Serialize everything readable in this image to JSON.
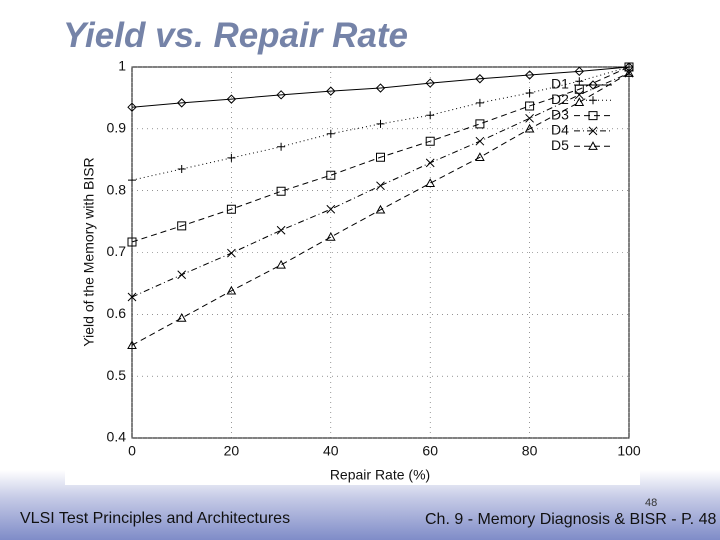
{
  "slide": {
    "title": "Yield vs. Repair Rate",
    "footer_left": "VLSI Test Principles and Architectures",
    "footer_right": "Ch. 9 - Memory Diagnosis & BISR - P. 48",
    "page_number": "48"
  },
  "chart_data": {
    "type": "line",
    "xlabel": "Repair Rate (%)",
    "ylabel": "Yield of the Memory with BISR",
    "x": [
      0,
      10,
      20,
      30,
      40,
      50,
      60,
      70,
      80,
      90,
      100
    ],
    "series": [
      {
        "name": "D1",
        "color": "#000000",
        "marker": "diamond",
        "dash": "solid",
        "values": [
          0.935,
          0.942,
          0.948,
          0.955,
          0.961,
          0.966,
          0.974,
          0.981,
          0.987,
          0.993,
          1.0
        ]
      },
      {
        "name": "D2",
        "color": "#000000",
        "marker": "plus",
        "dash": "dotted",
        "values": [
          0.817,
          0.835,
          0.853,
          0.871,
          0.892,
          0.908,
          0.922,
          0.942,
          0.958,
          0.977,
          1.0
        ]
      },
      {
        "name": "D3",
        "color": "#000000",
        "marker": "square",
        "dash": "dashed",
        "values": [
          0.717,
          0.743,
          0.77,
          0.799,
          0.825,
          0.854,
          0.88,
          0.908,
          0.937,
          0.964,
          1.0
        ]
      },
      {
        "name": "D4",
        "color": "#000000",
        "marker": "cross",
        "dash": "dashdot",
        "values": [
          0.628,
          0.664,
          0.699,
          0.736,
          0.77,
          0.808,
          0.845,
          0.88,
          0.917,
          0.955,
          0.99
        ]
      },
      {
        "name": "D5",
        "color": "#000000",
        "marker": "triangle",
        "dash": "dashed",
        "values": [
          0.55,
          0.594,
          0.638,
          0.68,
          0.725,
          0.769,
          0.812,
          0.854,
          0.9,
          0.943,
          0.99
        ]
      }
    ],
    "xlim": [
      0,
      100
    ],
    "ylim": [
      0.4,
      1
    ],
    "xticks": [
      0,
      20,
      40,
      60,
      80,
      100
    ],
    "yticks": [
      0.4,
      0.5,
      0.6,
      0.7,
      0.8,
      0.9,
      1
    ],
    "grid": true,
    "legend": "upper right"
  }
}
